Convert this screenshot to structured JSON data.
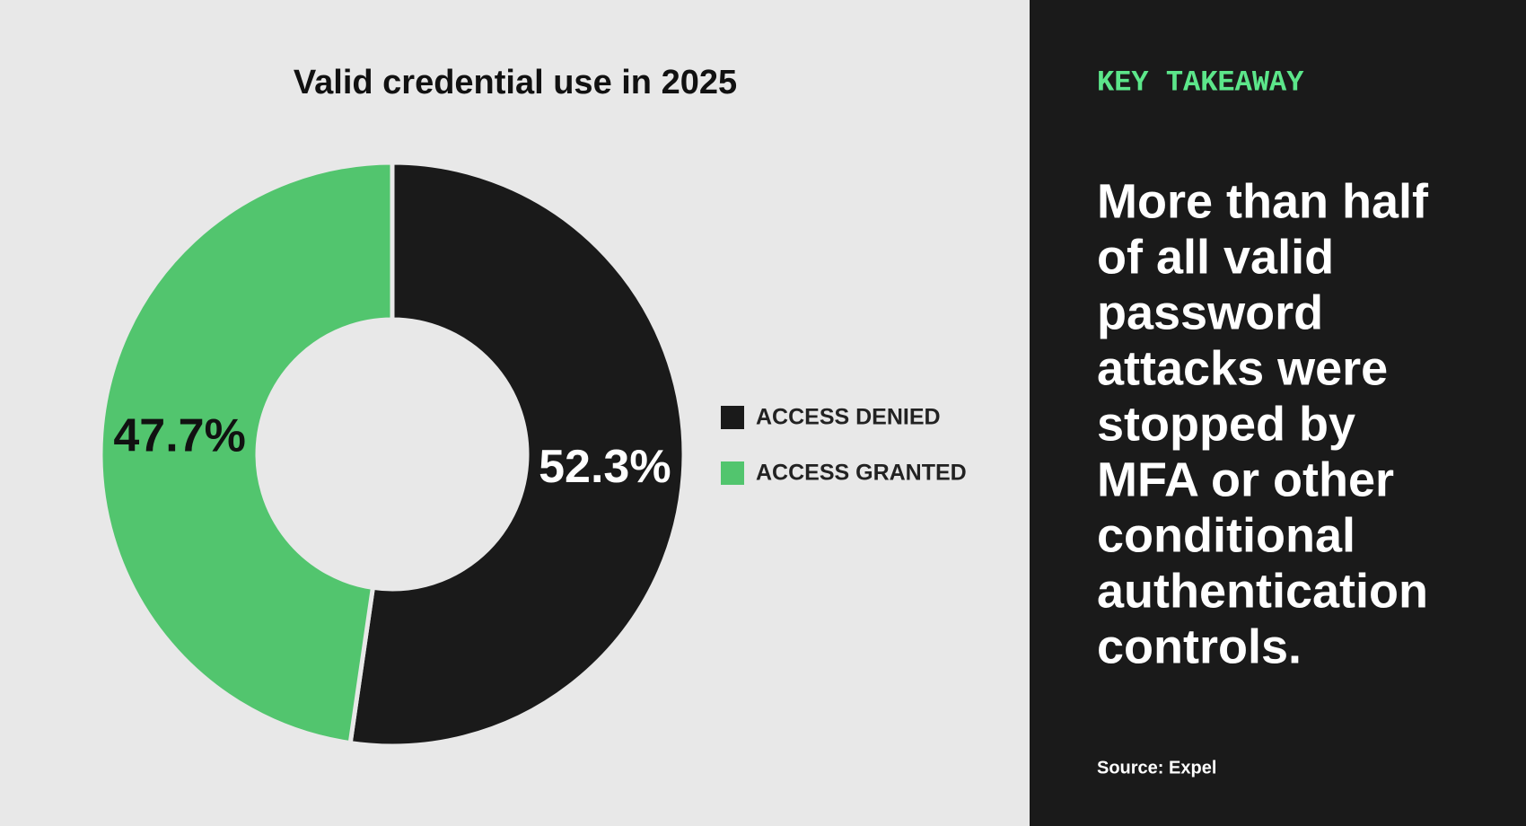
{
  "chart_data": {
    "type": "donut",
    "title": "Valid credential use in 2025",
    "categories": [
      "ACCESS DENIED",
      "ACCESS GRANTED"
    ],
    "values": [
      52.3,
      47.7
    ],
    "value_labels": [
      "52.3%",
      "47.7%"
    ],
    "colors": [
      "#1a1a1a",
      "#52c56e"
    ]
  },
  "takeaway": {
    "heading": "KEY TAKEAWAY",
    "lines": [
      "More than half",
      "of all valid",
      "password",
      "attacks were",
      "stopped by",
      "MFA or other",
      "conditional",
      "authentication",
      "controls."
    ],
    "source": "Source: Expel"
  }
}
